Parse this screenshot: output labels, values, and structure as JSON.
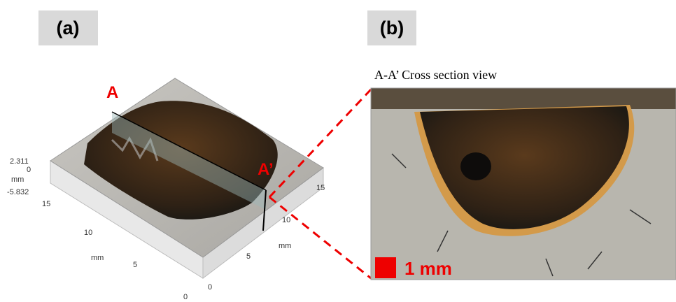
{
  "panel_a": {
    "label": "(a)",
    "section_start": "A",
    "section_end": "A’",
    "z_axis": {
      "max": "2.311",
      "zero": "0",
      "unit": "mm",
      "min": "-5.832"
    },
    "left_axis": {
      "ticks": [
        "15",
        "10",
        "5",
        "0"
      ],
      "unit": "mm"
    },
    "right_axis": {
      "ticks": [
        "15",
        "10",
        "5",
        "0"
      ],
      "unit": "mm"
    }
  },
  "panel_b": {
    "label": "(b)",
    "caption": "A-A’ Cross section view",
    "scale_bar": "1 mm"
  }
}
